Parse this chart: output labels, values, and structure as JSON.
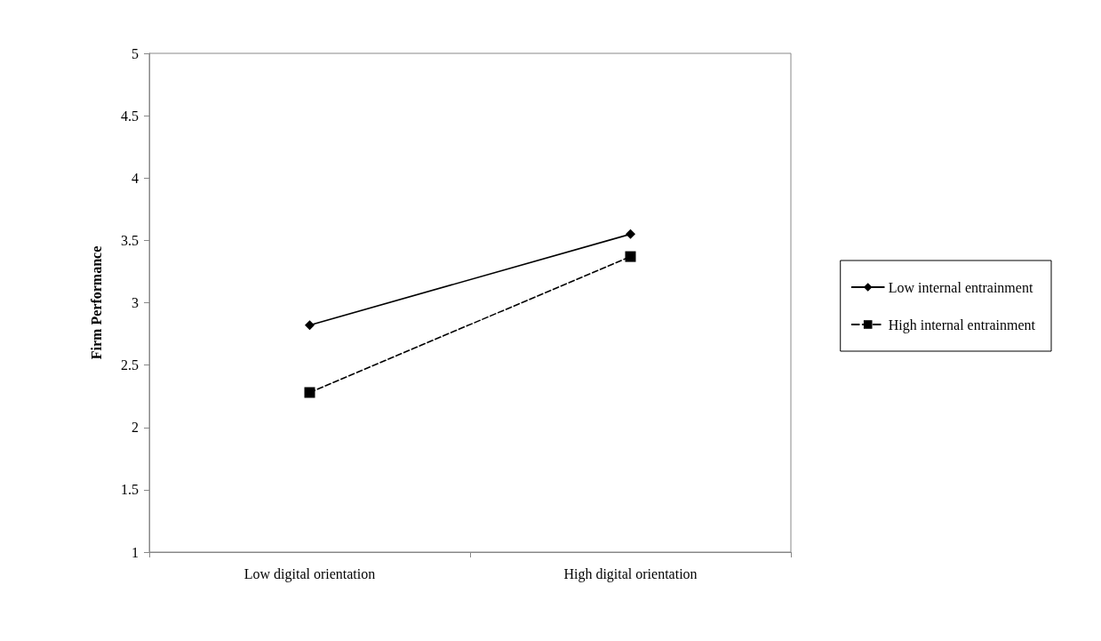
{
  "chart_data": {
    "type": "line",
    "ylabel": "Firm Performance",
    "categories": [
      "Low digital orientation",
      "High digital orientation"
    ],
    "series": [
      {
        "name": "Low internal entrainment",
        "color": "#000000",
        "values": [
          2.82,
          3.55
        ],
        "marker": "diamond",
        "line_style": "solid"
      },
      {
        "name": "High internal entrainment",
        "color": "#000000",
        "values": [
          2.28,
          3.37
        ],
        "marker": "square",
        "line_style": "dashed"
      }
    ],
    "ylim": [
      1,
      5
    ],
    "yticks": [
      1,
      1.5,
      2,
      2.5,
      3,
      3.5,
      4,
      4.5,
      5
    ],
    "grid": false,
    "legend": "right"
  }
}
